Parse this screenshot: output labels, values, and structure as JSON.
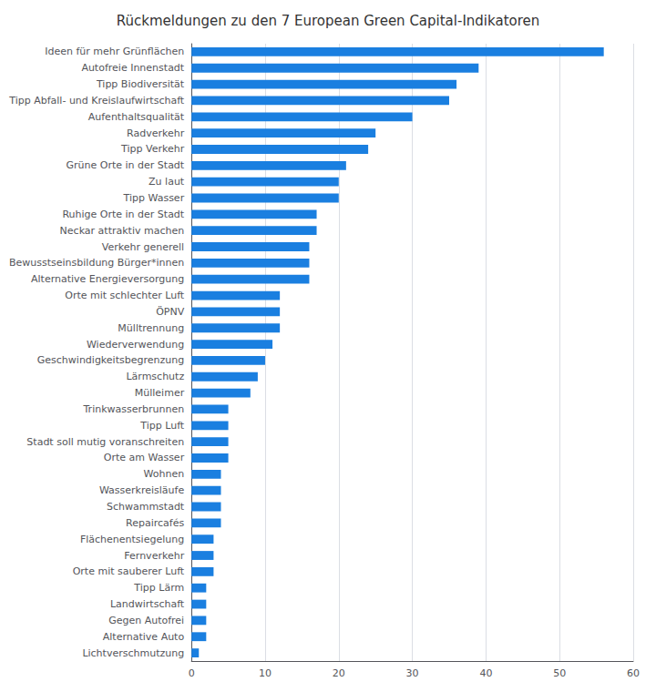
{
  "chart_data": {
    "type": "bar",
    "orientation": "horizontal",
    "title": "Rückmeldungen zu den 7 European Green Capital-Indikatoren",
    "categories": [
      "Ideen für mehr Grünflächen",
      "Autofreie Innenstadt",
      "Tipp Biodiversität",
      "Tipp Abfall- und Kreislaufwirtschaft",
      "Aufenthaltsqualität",
      "Radverkehr",
      "Tipp Verkehr",
      "Grüne Orte in der Stadt",
      "Zu laut",
      "Tipp Wasser",
      "Ruhige Orte in der Stadt",
      "Neckar attraktiv machen",
      "Verkehr generell",
      "Bewusstseinsbildung Bürger*innen",
      "Alternative Energieversorgung",
      "Orte mit schlechter Luft",
      "ÖPNV",
      "Mülltrennung",
      "Wiederverwendung",
      "Geschwindigkeitsbegrenzung",
      "Lärmschutz",
      "Mülleimer",
      "Trinkwasserbrunnen",
      "Tipp Luft",
      "Stadt soll mutig voranschreiten",
      "Orte am Wasser",
      "Wohnen",
      "Wasserkreisläufe",
      "Schwammstadt",
      "Repaircafés",
      "Flächenentsiegelung",
      "Fernverkehr",
      "Orte mit sauberer Luft",
      "Tipp Lärm",
      "Landwirtschaft",
      "Gegen Autofrei",
      "Alternative Auto",
      "Lichtverschmutzung"
    ],
    "values": [
      56,
      39,
      36,
      35,
      30,
      25,
      24,
      21,
      20,
      20,
      17,
      17,
      16,
      16,
      16,
      12,
      12,
      12,
      11,
      10,
      9,
      8,
      5,
      5,
      5,
      5,
      4,
      4,
      4,
      4,
      3,
      3,
      3,
      2,
      2,
      2,
      2,
      1
    ],
    "color": "#1a7fe0",
    "xlim": [
      0,
      60
    ],
    "xticks": [
      0,
      10,
      20,
      30,
      40,
      50,
      60
    ],
    "grid": true
  }
}
